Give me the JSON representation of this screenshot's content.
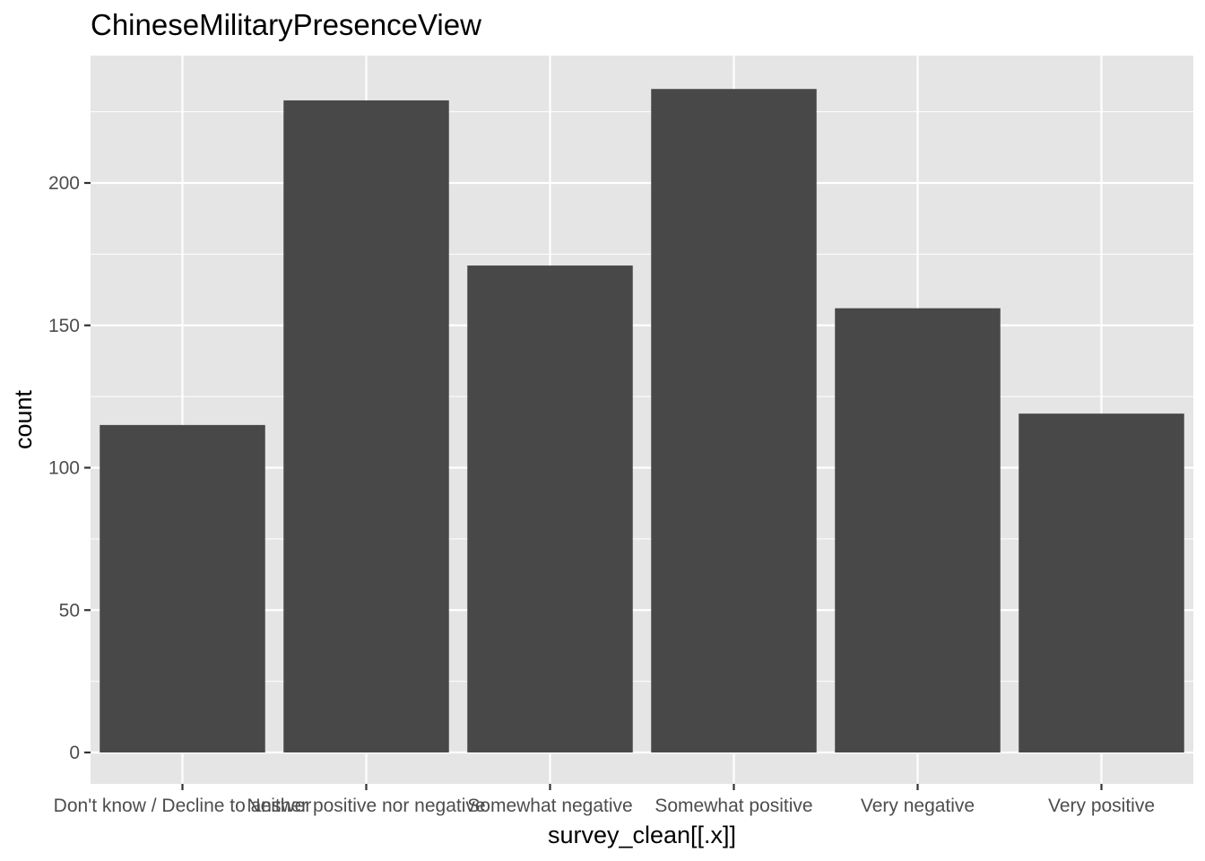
{
  "chart_data": {
    "type": "bar",
    "title": "ChineseMilitaryPresenceView",
    "xlabel": "survey_clean[[.x]]",
    "ylabel": "count",
    "categories": [
      "Don't know / Decline to answer",
      "Neither positive nor negative",
      "Somewhat negative",
      "Somewhat positive",
      "Very negative",
      "Very positive"
    ],
    "values": [
      115,
      229,
      171,
      233,
      156,
      119
    ],
    "ylim": [
      0,
      244
    ],
    "yticks": [
      0,
      50,
      100,
      150,
      200
    ],
    "grid": true,
    "bar_color": "#484848",
    "panel_color": "#e5e5e5",
    "grid_color": "#ffffff"
  }
}
